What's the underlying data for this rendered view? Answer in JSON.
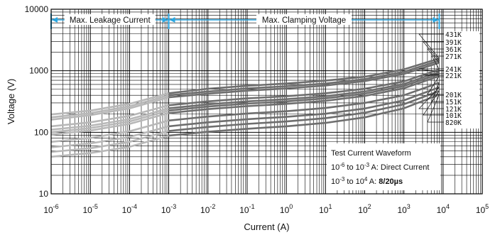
{
  "chart_data": {
    "type": "line",
    "xlabel": "Current (A)",
    "ylabel": "Voltage (V)",
    "x_scale": "log",
    "y_scale": "log",
    "xlim": [
      1e-06,
      100000
    ],
    "ylim": [
      10,
      10000
    ],
    "grid": true,
    "x_tick_labels": [
      {
        "base": "10",
        "exp": "-6"
      },
      {
        "base": "10",
        "exp": "-5"
      },
      {
        "base": "10",
        "exp": "-4"
      },
      {
        "base": "10",
        "exp": "-3"
      },
      {
        "base": "10",
        "exp": "-2"
      },
      {
        "base": "10",
        "exp": "-1"
      },
      {
        "base": "10",
        "exp": "0"
      },
      {
        "base": "10",
        "exp": "1"
      },
      {
        "base": "10",
        "exp": "2"
      },
      {
        "base": "10",
        "exp": "3"
      },
      {
        "base": "10",
        "exp": "4"
      },
      {
        "base": "10",
        "exp": "5"
      }
    ],
    "y_tick_labels": [
      "10",
      "100",
      "1000",
      "10000"
    ],
    "regions": [
      {
        "label": "Max. Leakage Current",
        "from": 1e-06,
        "to": 0.001
      },
      {
        "label": "Max. Clamping Voltage",
        "from": 0.001,
        "to": 8000
      }
    ],
    "series": [
      {
        "name": "431K",
        "x": [
          1e-06,
          1e-05,
          0.0001,
          0.001,
          0.01,
          0.1,
          1,
          10,
          100,
          1000,
          8000
        ],
        "y": [
          195,
          225,
          290,
          430,
          510,
          570,
          620,
          690,
          800,
          1050,
          1580
        ]
      },
      {
        "name": "391K",
        "x": [
          1e-06,
          1e-05,
          0.0001,
          0.001,
          0.01,
          0.1,
          1,
          10,
          100,
          1000,
          8000
        ],
        "y": [
          175,
          205,
          265,
          400,
          460,
          515,
          560,
          620,
          730,
          960,
          1460
        ]
      },
      {
        "name": "361K",
        "x": [
          1e-06,
          1e-05,
          0.0001,
          0.001,
          0.01,
          0.1,
          1,
          10,
          100,
          1000,
          8000
        ],
        "y": [
          160,
          190,
          245,
          370,
          425,
          475,
          515,
          575,
          680,
          890,
          1350
        ]
      },
      {
        "name": "271K",
        "x": [
          1e-06,
          1e-05,
          0.0001,
          0.001,
          0.01,
          0.1,
          1,
          10,
          100,
          1000,
          8000
        ],
        "y": [
          125,
          145,
          185,
          275,
          318,
          355,
          385,
          430,
          510,
          670,
          1050
        ]
      },
      {
        "name": "241K",
        "x": [
          1e-06,
          1e-05,
          0.0001,
          0.001,
          0.01,
          0.1,
          1,
          10,
          100,
          1000,
          8000
        ],
        "y": [
          110,
          128,
          163,
          245,
          285,
          318,
          345,
          385,
          460,
          610,
          960
        ]
      },
      {
        "name": "221K",
        "x": [
          1e-06,
          1e-05,
          0.0001,
          0.001,
          0.01,
          0.1,
          1,
          10,
          100,
          1000,
          8000
        ],
        "y": [
          100,
          117,
          150,
          225,
          262,
          292,
          318,
          355,
          425,
          565,
          890
        ]
      },
      {
        "name": "201K",
        "x": [
          1e-06,
          1e-05,
          0.0001,
          0.001,
          0.01,
          0.1,
          1,
          10,
          100,
          1000,
          8000
        ],
        "y": [
          92,
          107,
          137,
          205,
          238,
          266,
          290,
          325,
          390,
          520,
          820
        ]
      },
      {
        "name": "151K",
        "x": [
          1e-06,
          1e-05,
          0.0001,
          0.001,
          0.01,
          0.1,
          1,
          10,
          100,
          1000,
          8000
        ],
        "y": [
          70,
          81,
          104,
          155,
          180,
          202,
          220,
          248,
          300,
          400,
          640
        ]
      },
      {
        "name": "121K",
        "x": [
          1e-06,
          1e-05,
          0.0001,
          0.001,
          0.01,
          0.1,
          1,
          10,
          100,
          1000,
          8000
        ],
        "y": [
          57,
          66,
          84,
          125,
          145,
          163,
          178,
          200,
          243,
          330,
          540
        ]
      },
      {
        "name": "101K",
        "x": [
          1e-06,
          1e-05,
          0.0001,
          0.001,
          0.01,
          0.1,
          1,
          10,
          100,
          1000,
          8000
        ],
        "y": [
          48,
          55,
          70,
          105,
          122,
          137,
          150,
          170,
          208,
          285,
          470
        ]
      },
      {
        "name": "820K",
        "x": [
          1e-06,
          1e-05,
          0.0001,
          0.001,
          0.01,
          0.1,
          1,
          10,
          100,
          1000,
          8000
        ],
        "y": [
          40,
          46,
          58,
          88,
          102,
          114,
          125,
          142,
          175,
          245,
          410
        ]
      }
    ],
    "annotation": {
      "title": "Test Current Waveform",
      "line1": {
        "a": "10",
        "a_exp": "-6",
        "mid": " to ",
        "b": "10",
        "b_exp": "-3",
        "rest": " A: Direct Current"
      },
      "line2": {
        "a": "10",
        "a_exp": "-3",
        "mid": " to ",
        "b": "10",
        "b_exp": "4",
        "rest": " A: ",
        "bold": "8/20µs"
      }
    },
    "colors": {
      "leakage_line": "#b8b8b8",
      "clamping_line": "#6e6e6e",
      "range_marker": "#2aa6e0",
      "grid": "#000000"
    }
  }
}
